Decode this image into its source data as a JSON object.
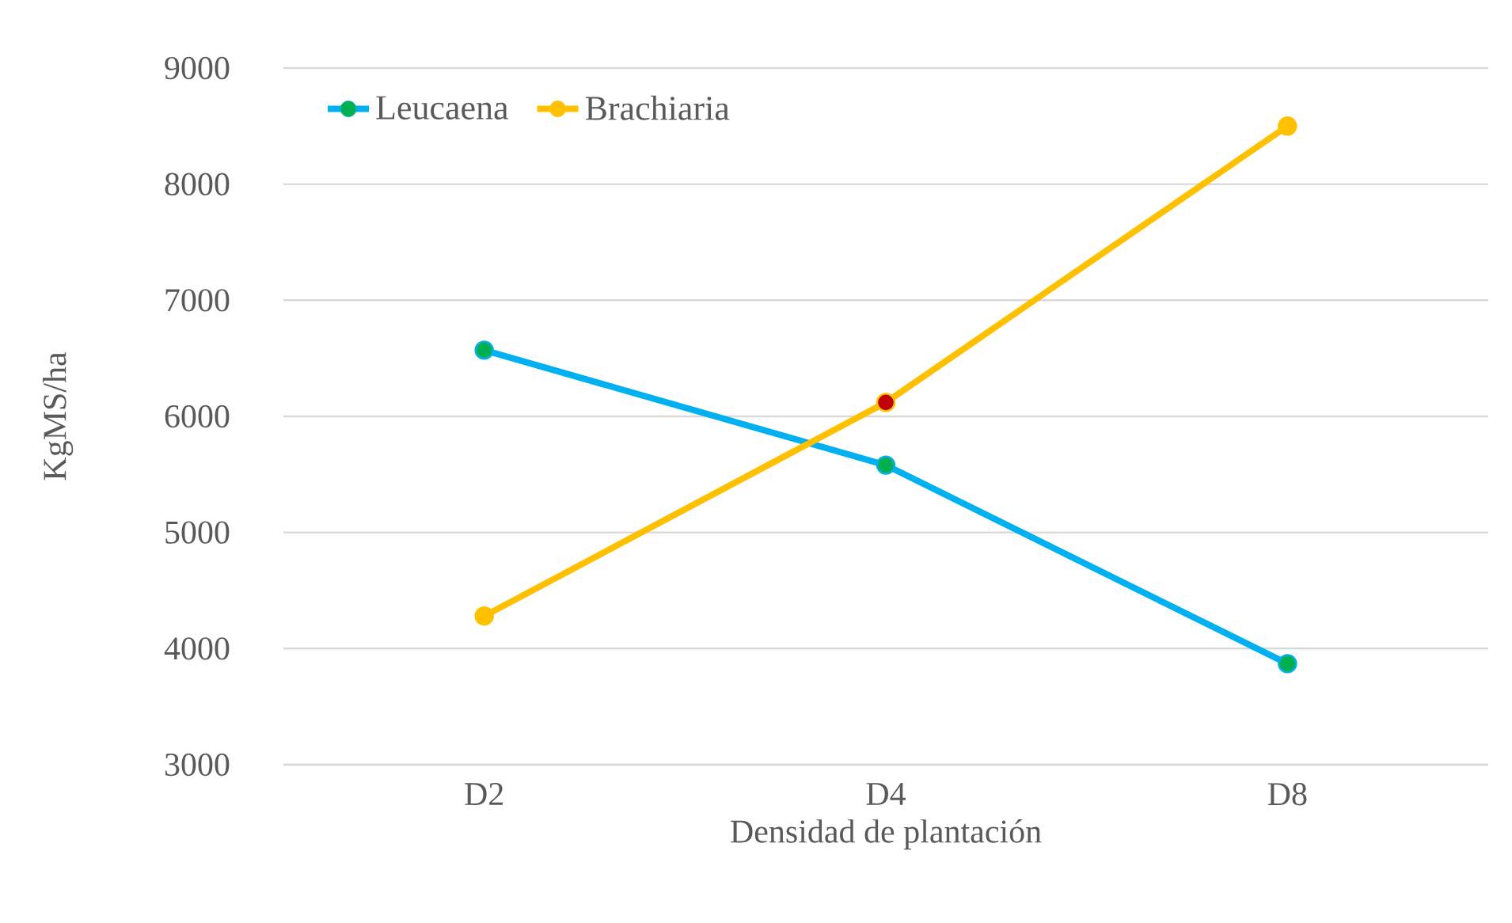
{
  "chart_data": {
    "type": "line",
    "xlabel": "Densidad de plantación",
    "ylabel": "KgMS/ha",
    "categories": [
      "D2",
      "D4",
      "D8"
    ],
    "series": [
      {
        "name": "Leucaena",
        "color": "#00b0f0",
        "colors": [
          "#00b050",
          "#00b050",
          "#00b050"
        ],
        "values": [
          6570,
          5580,
          3870
        ]
      },
      {
        "name": "Brachiaria",
        "color": "#ffc000",
        "colors": [
          "#ffc000",
          "#c00000",
          "#ffc000"
        ],
        "values": [
          4280,
          6120,
          8500
        ]
      }
    ],
    "ylim": [
      3000,
      9000
    ],
    "yticks": [
      3000,
      4000,
      5000,
      6000,
      7000,
      8000,
      9000
    ],
    "grid": "y",
    "legend": "top left",
    "marker": "circle"
  }
}
